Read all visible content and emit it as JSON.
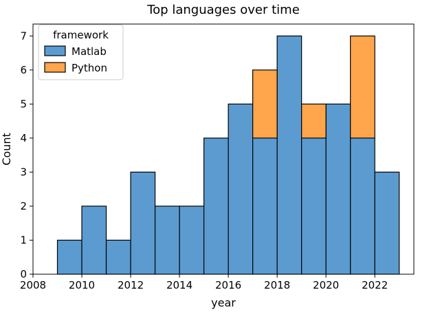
{
  "chart_data": {
    "type": "bar",
    "title": "Top languages over time",
    "xlabel": "year",
    "ylabel": "Count",
    "xlim": [
      2008,
      2023.6
    ],
    "ylim": [
      0,
      7.35
    ],
    "xticks": [
      2008,
      2010,
      2012,
      2014,
      2016,
      2018,
      2020,
      2022
    ],
    "yticks": [
      0,
      1,
      2,
      3,
      4,
      5,
      6,
      7
    ],
    "bin_edges": [
      2009,
      2010,
      2011,
      2012,
      2013,
      2014,
      2015,
      2016,
      2017,
      2018,
      2019,
      2020,
      2021,
      2022,
      2023
    ],
    "stacked": true,
    "series": [
      {
        "name": "Matlab",
        "color": "#5b9bd0",
        "values": [
          1,
          2,
          1,
          3,
          2,
          2,
          4,
          5,
          4,
          7,
          4,
          5,
          4,
          3
        ]
      },
      {
        "name": "Python",
        "color": "#ffa54c",
        "values": [
          0,
          0,
          0,
          0,
          0,
          0,
          0,
          0,
          2,
          0,
          1,
          0,
          3,
          0
        ]
      }
    ],
    "legend": {
      "title": "framework",
      "placement": "top-left"
    },
    "grid": false
  }
}
